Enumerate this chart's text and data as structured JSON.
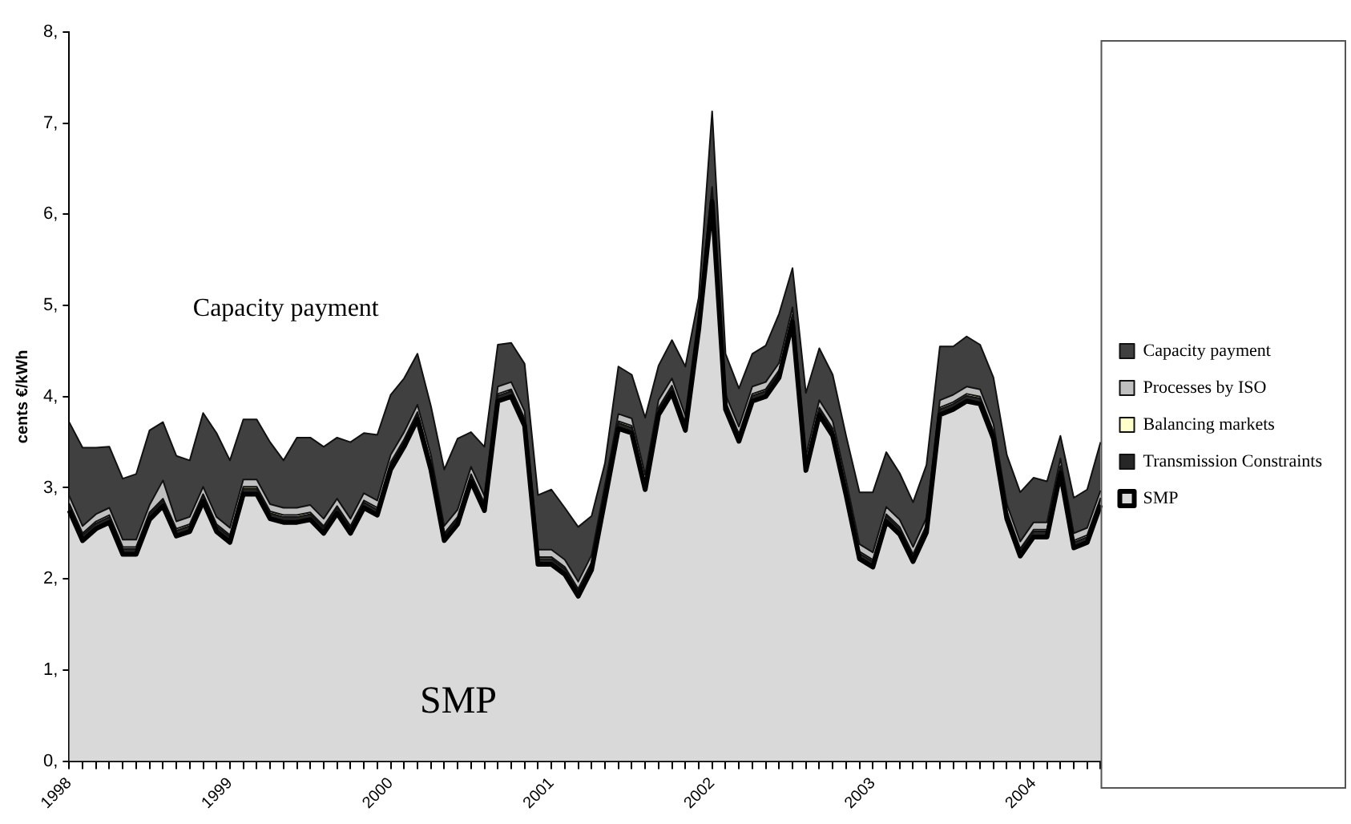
{
  "chart_data": {
    "type": "area",
    "stacked": true,
    "ylabel": "cents €/kWh",
    "categories": [
      "1998",
      null,
      null,
      null,
      null,
      null,
      null,
      null,
      null,
      null,
      null,
      null,
      "1999",
      null,
      null,
      null,
      null,
      null,
      null,
      null,
      null,
      null,
      null,
      null,
      "2000",
      null,
      null,
      null,
      null,
      null,
      null,
      null,
      null,
      null,
      null,
      null,
      "2001",
      null,
      null,
      null,
      null,
      null,
      null,
      null,
      null,
      null,
      null,
      null,
      "2002",
      null,
      null,
      null,
      null,
      null,
      null,
      null,
      null,
      null,
      null,
      null,
      "2003",
      null,
      null,
      null,
      null,
      null,
      null,
      null,
      null,
      null,
      null,
      null,
      "2004",
      null,
      null,
      null,
      null,
      null
    ],
    "ylim": [
      0,
      8
    ],
    "yticks": [
      {
        "value": 0,
        "label": "0,"
      },
      {
        "value": 1,
        "label": "1,"
      },
      {
        "value": 2,
        "label": "2,"
      },
      {
        "value": 3,
        "label": "3,"
      },
      {
        "value": 4,
        "label": "4,"
      },
      {
        "value": 5,
        "label": "5,"
      },
      {
        "value": 6,
        "label": "6,"
      },
      {
        "value": 7,
        "label": "7,"
      },
      {
        "value": 8,
        "label": "8,"
      }
    ],
    "grid": false,
    "legend": "right",
    "annotations": [
      "Capacity payment",
      "SMP"
    ],
    "series": [
      {
        "name": "SMP",
        "color": "#d9d9d9",
        "values": [
          2.75,
          2.42,
          2.55,
          2.62,
          2.27,
          2.27,
          2.65,
          2.8,
          2.47,
          2.52,
          2.85,
          2.52,
          2.4,
          2.93,
          2.93,
          2.66,
          2.62,
          2.62,
          2.65,
          2.5,
          2.72,
          2.5,
          2.78,
          2.7,
          3.2,
          3.45,
          3.75,
          3.2,
          2.42,
          2.6,
          3.07,
          2.75,
          3.95,
          4.0,
          3.68,
          2.16,
          2.16,
          2.05,
          1.81,
          2.1,
          2.87,
          3.65,
          3.6,
          2.98,
          3.8,
          4.04,
          3.63,
          4.74,
          6.14,
          3.86,
          3.51,
          3.95,
          4.0,
          4.21,
          4.82,
          3.19,
          3.8,
          3.57,
          2.92,
          2.22,
          2.13,
          2.63,
          2.49,
          2.19,
          2.51,
          3.8,
          3.86,
          3.95,
          3.92,
          3.54,
          2.66,
          2.25,
          2.46,
          2.46,
          3.16,
          2.34,
          2.4,
          2.81
        ]
      },
      {
        "name": "Transmission Constraints",
        "color": "#262626",
        "values": [
          0.06,
          0.06,
          0.06,
          0.06,
          0.06,
          0.06,
          0.06,
          0.06,
          0.06,
          0.06,
          0.06,
          0.06,
          0.06,
          0.06,
          0.06,
          0.06,
          0.06,
          0.06,
          0.06,
          0.06,
          0.06,
          0.06,
          0.06,
          0.06,
          0.06,
          0.06,
          0.06,
          0.06,
          0.06,
          0.06,
          0.06,
          0.06,
          0.06,
          0.06,
          0.06,
          0.06,
          0.06,
          0.06,
          0.06,
          0.06,
          0.06,
          0.06,
          0.06,
          0.06,
          0.06,
          0.06,
          0.06,
          0.06,
          0.06,
          0.06,
          0.06,
          0.06,
          0.06,
          0.06,
          0.06,
          0.06,
          0.06,
          0.06,
          0.06,
          0.06,
          0.06,
          0.06,
          0.06,
          0.06,
          0.06,
          0.06,
          0.06,
          0.06,
          0.06,
          0.06,
          0.06,
          0.06,
          0.06,
          0.06,
          0.06,
          0.06,
          0.06,
          0.06
        ]
      },
      {
        "name": "Balancing markets",
        "color": "#ffffcc",
        "values": [
          0.02,
          0.02,
          0.02,
          0.02,
          0.02,
          0.02,
          0.02,
          0.02,
          0.02,
          0.02,
          0.02,
          0.02,
          0.02,
          0.02,
          0.02,
          0.02,
          0.02,
          0.02,
          0.02,
          0.02,
          0.02,
          0.02,
          0.02,
          0.02,
          0.02,
          0.02,
          0.02,
          0.02,
          0.02,
          0.02,
          0.02,
          0.02,
          0.02,
          0.02,
          0.02,
          0.02,
          0.02,
          0.02,
          0.02,
          0.02,
          0.02,
          0.02,
          0.02,
          0.02,
          0.02,
          0.02,
          0.02,
          0.02,
          0.02,
          0.02,
          0.02,
          0.02,
          0.02,
          0.02,
          0.02,
          0.02,
          0.02,
          0.02,
          0.02,
          0.02,
          0.02,
          0.02,
          0.02,
          0.02,
          0.02,
          0.02,
          0.02,
          0.02,
          0.02,
          0.02,
          0.02,
          0.02,
          0.02,
          0.02,
          0.02,
          0.02,
          0.02,
          0.02
        ]
      },
      {
        "name": "Processes by ISO",
        "color": "#bfbfbf",
        "values": [
          0.08,
          0.08,
          0.08,
          0.08,
          0.08,
          0.08,
          0.08,
          0.2,
          0.08,
          0.08,
          0.08,
          0.08,
          0.08,
          0.08,
          0.08,
          0.08,
          0.08,
          0.08,
          0.08,
          0.08,
          0.08,
          0.08,
          0.08,
          0.08,
          0.08,
          0.08,
          0.08,
          0.08,
          0.08,
          0.08,
          0.08,
          0.08,
          0.08,
          0.08,
          0.08,
          0.08,
          0.08,
          0.08,
          0.08,
          0.08,
          0.08,
          0.08,
          0.08,
          0.08,
          0.08,
          0.08,
          0.08,
          0.08,
          0.08,
          0.08,
          0.08,
          0.08,
          0.08,
          0.08,
          0.08,
          0.08,
          0.08,
          0.08,
          0.08,
          0.08,
          0.08,
          0.08,
          0.08,
          0.08,
          0.08,
          0.08,
          0.08,
          0.08,
          0.08,
          0.08,
          0.08,
          0.08,
          0.08,
          0.08,
          0.08,
          0.08,
          0.08,
          0.08
        ]
      },
      {
        "name": "Capacity payment",
        "color": "#404040",
        "values": [
          0.81,
          0.86,
          0.73,
          0.67,
          0.67,
          0.72,
          0.82,
          0.64,
          0.72,
          0.62,
          0.81,
          0.92,
          0.74,
          0.66,
          0.66,
          0.68,
          0.52,
          0.77,
          0.74,
          0.79,
          0.67,
          0.84,
          0.66,
          0.72,
          0.66,
          0.59,
          0.56,
          0.54,
          0.62,
          0.78,
          0.38,
          0.54,
          0.46,
          0.43,
          0.52,
          0.6,
          0.66,
          0.57,
          0.6,
          0.43,
          0.24,
          0.52,
          0.48,
          0.63,
          0.38,
          0.42,
          0.54,
          0.19,
          0.83,
          0.45,
          0.42,
          0.36,
          0.4,
          0.54,
          0.43,
          0.69,
          0.57,
          0.51,
          0.49,
          0.57,
          0.66,
          0.6,
          0.51,
          0.49,
          0.58,
          0.59,
          0.53,
          0.55,
          0.49,
          0.51,
          0.54,
          0.54,
          0.49,
          0.45,
          0.25,
          0.39,
          0.42,
          0.53
        ]
      }
    ]
  }
}
